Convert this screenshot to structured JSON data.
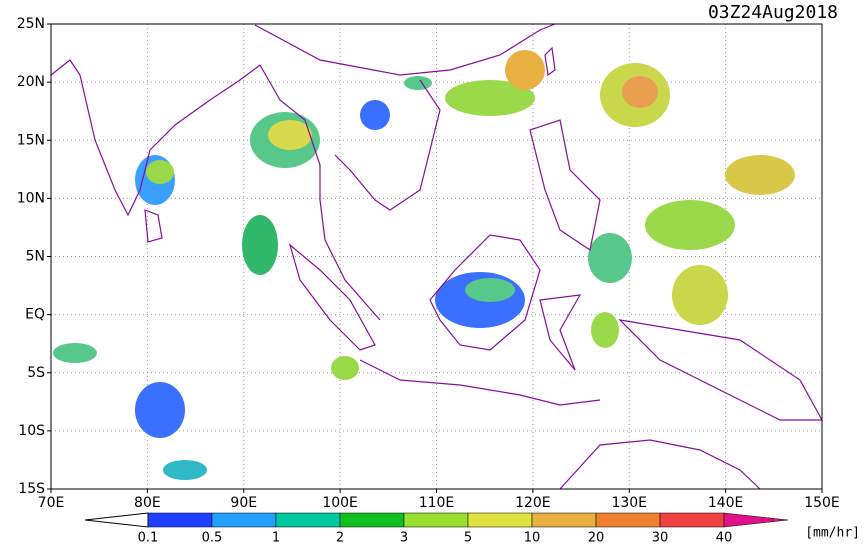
{
  "header": {
    "title": "03Z24Aug2018"
  },
  "map": {
    "lat_labels": [
      "25N",
      "20N",
      "15N",
      "10N",
      "5N",
      "EQ",
      "5S",
      "10S",
      "15S"
    ],
    "lon_labels": [
      "70E",
      "80E",
      "90E",
      "100E",
      "110E",
      "120E",
      "130E",
      "140E",
      "150E"
    ]
  },
  "colorbar": {
    "labels": [
      "0.1",
      "0.5",
      "1",
      "2",
      "3",
      "5",
      "10",
      "20",
      "30",
      "40"
    ],
    "unit": "[mm/hr]"
  }
}
